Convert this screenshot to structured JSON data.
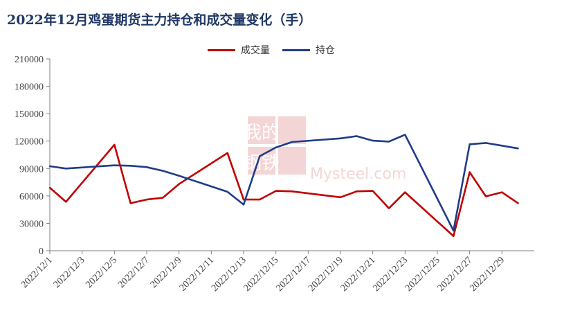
{
  "chart_data": {
    "type": "line",
    "title": "2022年12月鸡蛋期货主力持仓和成交量变化（手）",
    "xlabel": "",
    "ylabel": "",
    "ylim": [
      0,
      210000
    ],
    "yticks": [
      0,
      30000,
      60000,
      90000,
      120000,
      150000,
      180000,
      210000
    ],
    "xticks": [
      "2022/12/1",
      "2022/12/3",
      "2022/12/5",
      "2022/12/7",
      "2022/12/9",
      "2022/12/11",
      "2022/12/13",
      "2022/12/15",
      "2022/12/17",
      "2022/12/19",
      "2022/12/21",
      "2022/12/23",
      "2022/12/25",
      "2022/12/27",
      "2022/12/29"
    ],
    "x": [
      "2022/12/1",
      "2022/12/2",
      "2022/12/5",
      "2022/12/6",
      "2022/12/7",
      "2022/12/8",
      "2022/12/9",
      "2022/12/12",
      "2022/12/13",
      "2022/12/14",
      "2022/12/15",
      "2022/12/16",
      "2022/12/19",
      "2022/12/20",
      "2022/12/21",
      "2022/12/22",
      "2022/12/23",
      "2022/12/26",
      "2022/12/27",
      "2022/12/28",
      "2022/12/29",
      "2022/12/30"
    ],
    "grid": false,
    "legend_position": "top",
    "series": [
      {
        "name": "成交量",
        "color": "#c00000",
        "values": [
          69000,
          53500,
          116000,
          52000,
          56000,
          58000,
          73000,
          107000,
          56000,
          56000,
          65500,
          65000,
          58500,
          65000,
          65500,
          46500,
          64000,
          16000,
          86000,
          59500,
          64000,
          52000
        ]
      },
      {
        "name": "持仓",
        "color": "#1f3c88",
        "values": [
          92500,
          90000,
          93500,
          93000,
          91500,
          87500,
          82000,
          64500,
          50500,
          103500,
          113000,
          119000,
          123000,
          125500,
          120500,
          119500,
          127000,
          22000,
          116500,
          118000,
          115000,
          112000
        ]
      }
    ]
  },
  "watermark": {
    "line1": "我的",
    "line2": "钢铁",
    "line3": "Mysteel.com"
  }
}
